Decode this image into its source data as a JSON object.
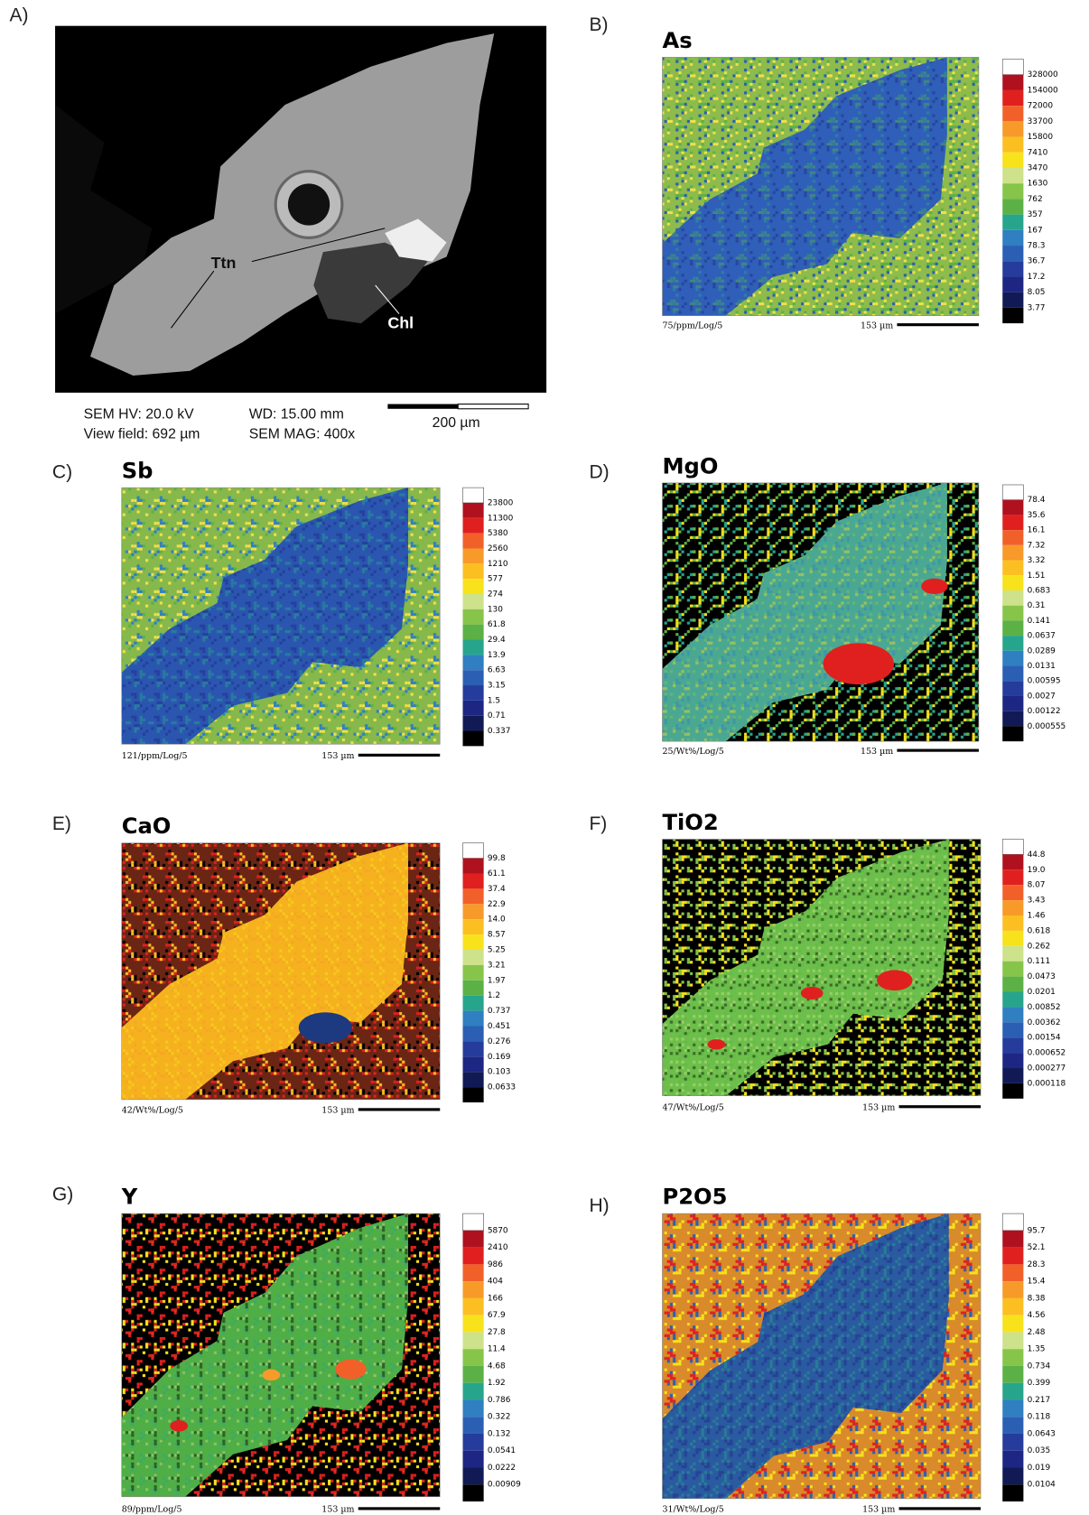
{
  "panel_a": {
    "label": "A)",
    "annotations": [
      "Ttn",
      "Chl"
    ],
    "info": [
      "SEM HV: 20.0 kV",
      "View field: 692 µm",
      "WD: 15.00 mm",
      "SEM MAG: 400x"
    ],
    "scale_bar": "200 µm"
  },
  "maps": [
    {
      "label": "B)",
      "title": "As",
      "scale": [
        "328000",
        "154000",
        "72000",
        "33700",
        "15800",
        "7410",
        "3470",
        "1630",
        "762",
        "357",
        "167",
        "78.3",
        "36.7",
        "17.2",
        "8.05",
        "3.77"
      ],
      "footer": "75/ppm/Log/5",
      "scale_bar": "153 µm"
    },
    {
      "label": "C)",
      "title": "Sb",
      "scale": [
        "23800",
        "11300",
        "5380",
        "2560",
        "1210",
        "577",
        "274",
        "130",
        "61.8",
        "29.4",
        "13.9",
        "6.63",
        "3.15",
        "1.5",
        "0.71",
        "0.337"
      ],
      "footer": "121/ppm/Log/5",
      "scale_bar": "153 µm"
    },
    {
      "label": "D)",
      "title": "MgO",
      "scale": [
        "78.4",
        "35.6",
        "16.1",
        "7.32",
        "3.32",
        "1.51",
        "0.683",
        "0.31",
        "0.141",
        "0.0637",
        "0.0289",
        "0.0131",
        "0.00595",
        "0.0027",
        "0.00122",
        "0.000555"
      ],
      "footer": "25/Wt%/Log/5",
      "scale_bar": "153 µm"
    },
    {
      "label": "E)",
      "title": "CaO",
      "scale": [
        "99.8",
        "61.1",
        "37.4",
        "22.9",
        "14.0",
        "8.57",
        "5.25",
        "3.21",
        "1.97",
        "1.2",
        "0.737",
        "0.451",
        "0.276",
        "0.169",
        "0.103",
        "0.0633"
      ],
      "footer": "42/Wt%/Log/5",
      "scale_bar": "153 µm"
    },
    {
      "label": "F)",
      "title": "TiO2",
      "scale": [
        "44.8",
        "19.0",
        "8.07",
        "3.43",
        "1.46",
        "0.618",
        "0.262",
        "0.111",
        "0.0473",
        "0.0201",
        "0.00852",
        "0.00362",
        "0.00154",
        "0.000652",
        "0.000277",
        "0.000118"
      ],
      "footer": "47/Wt%/Log/5",
      "scale_bar": "153 µm"
    },
    {
      "label": "G)",
      "title": "Y",
      "scale": [
        "5870",
        "2410",
        "986",
        "404",
        "166",
        "67.9",
        "27.8",
        "11.4",
        "4.68",
        "1.92",
        "0.786",
        "0.322",
        "0.132",
        "0.0541",
        "0.0222",
        "0.00909"
      ],
      "footer": "89/ppm/Log/5",
      "scale_bar": "153 µm"
    },
    {
      "label": "H)",
      "title": "P2O5",
      "scale": [
        "95.7",
        "52.1",
        "28.3",
        "15.4",
        "8.38",
        "4.56",
        "2.48",
        "1.35",
        "0.734",
        "0.399",
        "0.217",
        "0.118",
        "0.0643",
        "0.035",
        "0.019",
        "0.0104"
      ],
      "footer": "31/Wt%/Log/5",
      "scale_bar": "153 µm"
    }
  ]
}
